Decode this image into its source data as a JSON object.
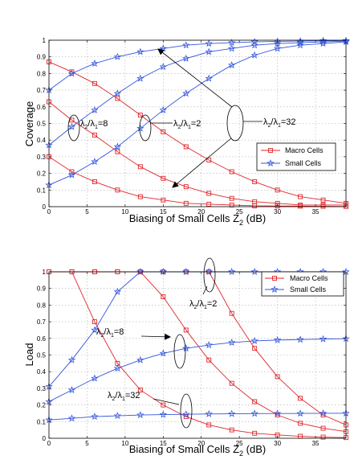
{
  "chart_data": [
    {
      "type": "line",
      "title": "",
      "xlabel": "Biasing of Small Cells Z",
      "xlabel_sub": "2",
      "xlabel_unit": " (dB)",
      "ylabel": "Coverage",
      "xlim": [
        0,
        39
      ],
      "ylim": [
        0,
        1
      ],
      "x_ticks": [
        0,
        5,
        10,
        15,
        20,
        25,
        30,
        35
      ],
      "y_ticks": [
        0,
        0.1,
        0.2,
        0.3,
        0.4,
        0.5,
        0.6,
        0.7,
        0.8,
        0.9,
        1
      ],
      "grid": true,
      "legend_position": "right",
      "x": [
        0,
        3,
        6,
        9,
        12,
        15,
        18,
        21,
        24,
        27,
        30,
        33,
        36,
        39
      ],
      "series": [
        {
          "name": "Macro Cells",
          "group": "λ2/λ1=2",
          "color": "#e0262a",
          "marker": "square",
          "values": [
            0.87,
            0.81,
            0.74,
            0.65,
            0.55,
            0.45,
            0.36,
            0.28,
            0.21,
            0.15,
            0.1,
            0.06,
            0.04,
            0.02
          ]
        },
        {
          "name": "Macro Cells",
          "group": "λ2/λ1=8",
          "color": "#e0262a",
          "marker": "square",
          "values": [
            0.63,
            0.52,
            0.43,
            0.33,
            0.24,
            0.17,
            0.12,
            0.08,
            0.05,
            0.03,
            0.02,
            0.01,
            0.01,
            0.01
          ]
        },
        {
          "name": "Macro Cells",
          "group": "λ2/λ1=32",
          "color": "#e0262a",
          "marker": "square",
          "values": [
            0.3,
            0.21,
            0.15,
            0.1,
            0.06,
            0.04,
            0.02,
            0.015,
            0.01,
            0.005,
            0.004,
            0.003,
            0.002,
            0.001
          ]
        },
        {
          "name": "Small Cells",
          "group": "λ2/λ1=32",
          "color": "#3355dd",
          "marker": "star",
          "values": [
            0.7,
            0.8,
            0.86,
            0.9,
            0.93,
            0.95,
            0.97,
            0.98,
            0.985,
            0.99,
            0.993,
            0.995,
            0.997,
            0.998
          ]
        },
        {
          "name": "Small Cells",
          "group": "λ2/λ1=8",
          "color": "#3355dd",
          "marker": "star",
          "values": [
            0.37,
            0.48,
            0.58,
            0.68,
            0.77,
            0.84,
            0.89,
            0.93,
            0.95,
            0.97,
            0.98,
            0.985,
            0.99,
            0.995
          ]
        },
        {
          "name": "Small Cells",
          "group": "λ2/λ1=2",
          "color": "#3355dd",
          "marker": "star",
          "values": [
            0.13,
            0.19,
            0.27,
            0.36,
            0.47,
            0.58,
            0.68,
            0.77,
            0.85,
            0.91,
            0.95,
            0.97,
            0.98,
            0.99
          ]
        }
      ],
      "legend": [
        {
          "label": "Macro Cells",
          "color": "#e0262a",
          "marker": "square"
        },
        {
          "label": "Small Cells",
          "color": "#3355dd",
          "marker": "star"
        }
      ],
      "annotations": [
        {
          "text": "λ",
          "sub1": "2",
          "mid": "/λ",
          "sub2": "1",
          "tail": "=8"
        },
        {
          "text": "λ",
          "sub1": "2",
          "mid": "/λ",
          "sub2": "1",
          "tail": "=2"
        },
        {
          "text": "λ",
          "sub1": "2",
          "mid": "/λ",
          "sub2": "1",
          "tail": "=32"
        }
      ]
    },
    {
      "type": "line",
      "title": "",
      "xlabel": "Biasing of Small Cells Z",
      "xlabel_sub": "2",
      "xlabel_unit": " (dB)",
      "ylabel": "Load",
      "xlim": [
        0,
        39
      ],
      "ylim": [
        0,
        1
      ],
      "x_ticks": [
        0,
        5,
        10,
        15,
        20,
        25,
        30,
        35
      ],
      "y_ticks": [
        0,
        0.1,
        0.2,
        0.3,
        0.4,
        0.5,
        0.6,
        0.7,
        0.8,
        0.9,
        1
      ],
      "grid": true,
      "legend_position": "top-right",
      "x": [
        0,
        3,
        6,
        9,
        12,
        15,
        18,
        21,
        24,
        27,
        30,
        33,
        36,
        39
      ],
      "series": [
        {
          "name": "Macro Cells",
          "group": "λ2/λ1=2",
          "color": "#e0262a",
          "marker": "square",
          "values": [
            1,
            1,
            1,
            1,
            1,
            1,
            1,
            1,
            0.75,
            0.54,
            0.37,
            0.24,
            0.14,
            0.08
          ]
        },
        {
          "name": "Macro Cells",
          "group": "λ2/λ1=8",
          "color": "#e0262a",
          "marker": "square",
          "values": [
            1,
            1,
            1,
            1,
            1,
            0.85,
            0.65,
            0.47,
            0.33,
            0.22,
            0.14,
            0.09,
            0.06,
            0.04
          ]
        },
        {
          "name": "Macro Cells",
          "group": "λ2/λ1=32",
          "color": "#e0262a",
          "marker": "square",
          "values": [
            1,
            1,
            0.7,
            0.45,
            0.29,
            0.2,
            0.13,
            0.08,
            0.05,
            0.03,
            0.02,
            0.012,
            0.007,
            0.004
          ]
        },
        {
          "name": "Small Cells",
          "group": "λ2/λ1=32",
          "color": "#3355dd",
          "marker": "star",
          "values": [
            0.31,
            0.47,
            0.65,
            0.88,
            1,
            1,
            1,
            1,
            1,
            1,
            1,
            1,
            1,
            1
          ]
        },
        {
          "name": "Small Cells",
          "group": "λ2/λ1=8",
          "color": "#3355dd",
          "marker": "star",
          "values": [
            0.22,
            0.29,
            0.36,
            0.42,
            0.47,
            0.51,
            0.54,
            0.56,
            0.575,
            0.585,
            0.59,
            0.593,
            0.596,
            0.598
          ]
        },
        {
          "name": "Small Cells",
          "group": "λ2/λ1=2",
          "color": "#3355dd",
          "marker": "star",
          "values": [
            0.11,
            0.12,
            0.13,
            0.135,
            0.14,
            0.142,
            0.144,
            0.146,
            0.147,
            0.148,
            0.149,
            0.149,
            0.15,
            0.15
          ]
        }
      ],
      "legend": [
        {
          "label": "Macro Cells",
          "color": "#e0262a",
          "marker": "square"
        },
        {
          "label": "Small Cells",
          "color": "#3355dd",
          "marker": "star"
        }
      ],
      "annotations": [
        {
          "text": "λ",
          "sub1": "2",
          "mid": "/λ",
          "sub2": "1",
          "tail": "=2"
        },
        {
          "text": "λ",
          "sub1": "2",
          "mid": "/λ",
          "sub2": "1",
          "tail": "=8"
        },
        {
          "text": "λ",
          "sub1": "2",
          "mid": "/λ",
          "sub2": "1",
          "tail": "=32"
        }
      ]
    }
  ]
}
